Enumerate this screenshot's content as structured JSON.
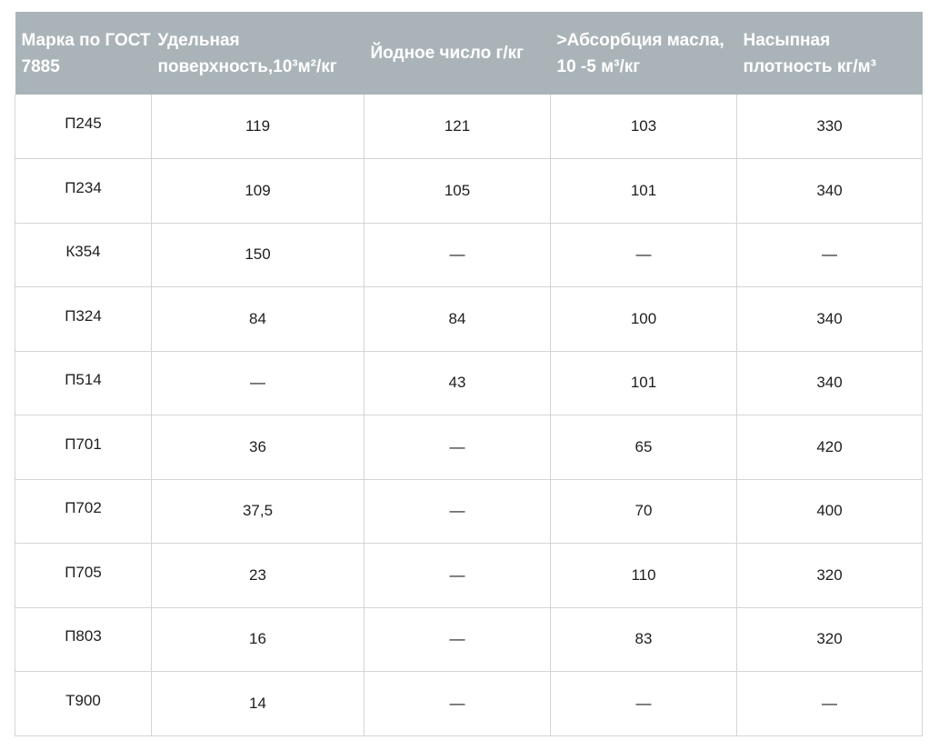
{
  "table": {
    "headers": [
      "Марка по ГОСТ 7885",
      "Удельная поверхность,10³м²/кг",
      "Йодное число г/кг",
      ">Абсорбция масла, 10 -5 м³/кг",
      "Насыпная плотность кг/м³"
    ],
    "rows": [
      [
        "П245",
        "119",
        "121",
        "103",
        "330"
      ],
      [
        "П234",
        "109",
        "105",
        "101",
        "340"
      ],
      [
        "К354",
        "150",
        "—",
        "—",
        "—"
      ],
      [
        "П324",
        "84",
        "84",
        "100",
        "340"
      ],
      [
        "П514",
        "—",
        "43",
        "101",
        "340"
      ],
      [
        "П701",
        "36",
        "—",
        "65",
        "420"
      ],
      [
        "П702",
        "37,5",
        "—",
        "70",
        "400"
      ],
      [
        "П705",
        "23",
        "—",
        "110",
        "320"
      ],
      [
        "П803",
        "16",
        "—",
        "83",
        "320"
      ],
      [
        "Т900",
        "14",
        "—",
        "—",
        "—"
      ]
    ]
  },
  "colors": {
    "header_bg": "#aab4b8",
    "header_text": "#ffffff",
    "border": "#d2d5d7",
    "cell_text": "#1e1e1e"
  }
}
